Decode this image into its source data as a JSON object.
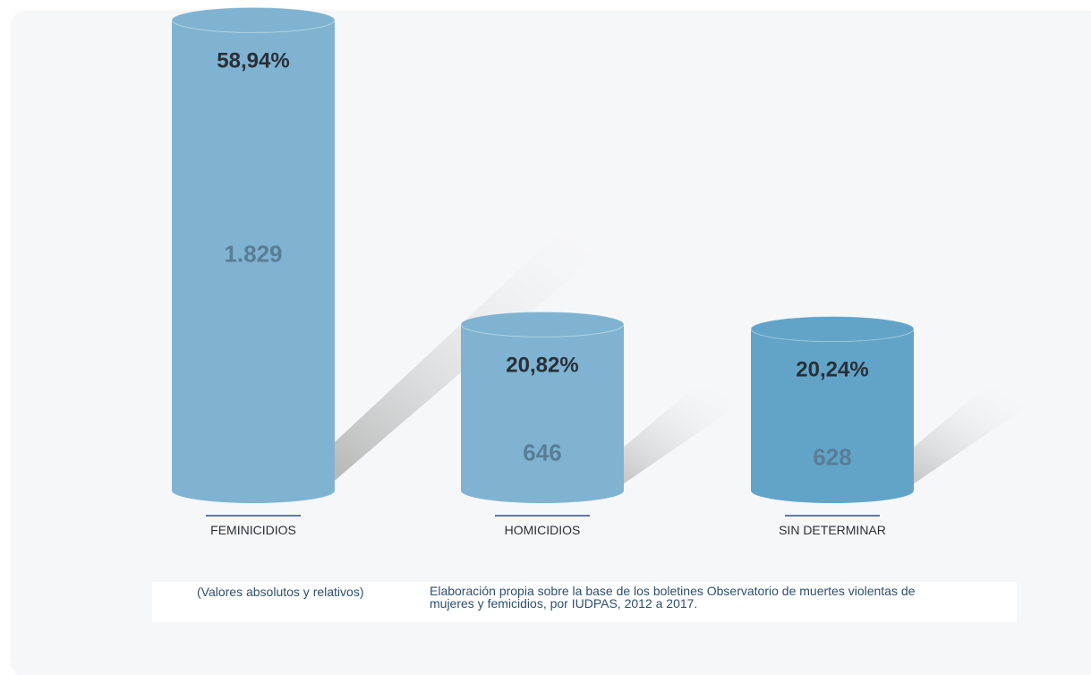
{
  "chart_data": {
    "type": "bar",
    "categories": [
      "FEMINICIDIOS",
      "HOMICIDIOS",
      "SIN DETERMINAR"
    ],
    "values": [
      1829,
      646,
      628
    ],
    "value_labels": [
      "1.829",
      "646",
      "628"
    ],
    "percent_labels": [
      "58,94%",
      "20,82%",
      "20,24%"
    ],
    "percents": [
      58.94,
      20.82,
      20.24
    ],
    "ylim": [
      0,
      1900
    ],
    "grid": false,
    "legend": "none",
    "colors": [
      "#7fb3d1",
      "#7fb3d1",
      "#62a4c8"
    ]
  },
  "caption": {
    "left": "(Valores absolutos y relativos)",
    "right": "Elaboración propia sobre la base de los boletines Observatorio de muertes violentas de mujeres y femicidios, por IUDPAS, 2012 a 2017."
  },
  "colors": {
    "percent_text": "#2b2f36",
    "value_text": "#5a7d96",
    "underline": "#2f4f8f",
    "category_text": "#2b2f36"
  }
}
